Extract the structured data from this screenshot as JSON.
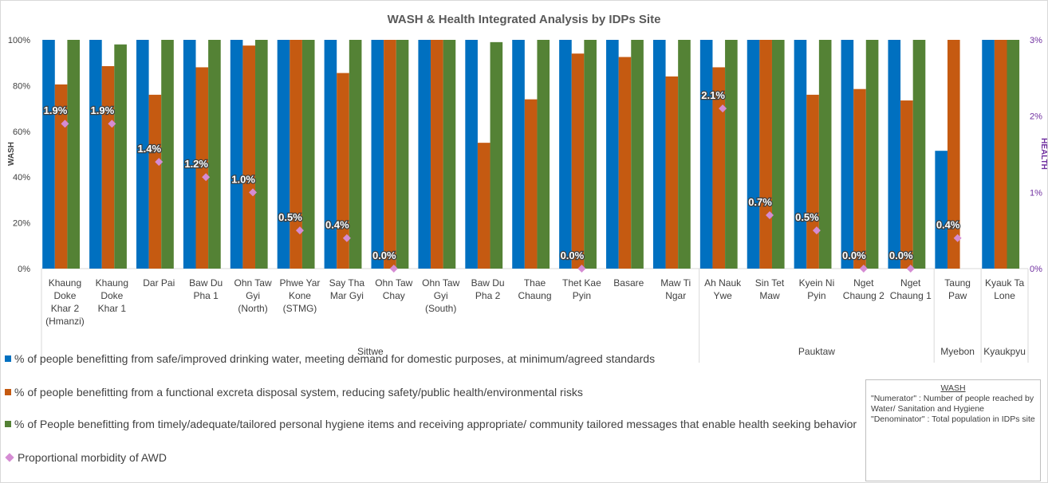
{
  "chart_data": {
    "type": "bar",
    "title": "WASH & Health Integrated Analysis by IDPs Site",
    "y_label": "WASH",
    "y2_label": "HEALTH",
    "groups": [
      {
        "label": "Sittwe",
        "categories": [
          "Khaung\nDoke\nKhar 2\n(Hmanzi)",
          "Khaung\nDoke\nKhar 1",
          "Dar Pai",
          "Baw Du\nPha 1",
          "Ohn Taw\nGyi\n(North)",
          "Phwe Yar\nKone\n(STMG)",
          "Say Tha\nMar Gyi",
          "Ohn Taw\nChay",
          "Ohn Taw\nGyi\n(South)",
          "Baw Du\nPha 2",
          "Thae\nChaung",
          "Thet Kae\nPyin",
          "Basare",
          "Maw Ti\nNgar"
        ]
      },
      {
        "label": "Pauktaw",
        "categories": [
          "Ah Nauk\nYwe",
          "Sin Tet\nMaw",
          "Kyein Ni\nPyin",
          "Nget\nChaung 2",
          "Nget\nChaung 1"
        ]
      },
      {
        "label": "Myebon",
        "categories": [
          "Taung\nPaw"
        ]
      },
      {
        "label": "Kyaukpyu",
        "categories": [
          "Kyauk Ta\nLone"
        ]
      }
    ],
    "series": [
      {
        "name": "% of people benefitting from safe/improved drinking water, meeting demand for domestic purposes, at minimum/agreed standards",
        "color": "#0070c0",
        "values": [
          100,
          100,
          100,
          100,
          100,
          100,
          100,
          100,
          100,
          100,
          100,
          100,
          100,
          100,
          100,
          100,
          100,
          100,
          100,
          51.5,
          100
        ]
      },
      {
        "name": "% of people benefitting from a functional excreta disposal system, reducing safety/public health/environmental risks",
        "color": "#c55a11",
        "values": [
          80.5,
          88.5,
          76,
          88,
          97.5,
          100,
          85.5,
          100,
          100,
          55,
          74,
          94,
          92.5,
          84,
          88,
          100,
          76,
          78.5,
          73.5,
          100,
          100
        ]
      },
      {
        "name": "% of People benefitting from timely/adequate/tailored personal hygiene items and receiving appropriate/ community tailored messages that enable health seeking behavior",
        "color": "#548235",
        "values": [
          100,
          98,
          100,
          100,
          100,
          100,
          100,
          100,
          100,
          99,
          100,
          100,
          100,
          100,
          100,
          100,
          100,
          100,
          100,
          null,
          100
        ]
      },
      {
        "name": "Proportional morbidity of AWD",
        "color": "#d58cd3",
        "axis": "y2",
        "marker": "diamond",
        "values": [
          1.9,
          1.9,
          1.4,
          1.2,
          1.0,
          0.5,
          0.4,
          0.0,
          null,
          null,
          null,
          0.0,
          null,
          null,
          2.1,
          0.7,
          0.5,
          0.0,
          0.0,
          0.4,
          null
        ],
        "value_labels": [
          "1.9%",
          "1.9%",
          "1.4%",
          "1.2%",
          "1.0%",
          "0.5%",
          "0.4%",
          "0.0%",
          null,
          null,
          null,
          "0.0%",
          null,
          null,
          "2.1%",
          "0.7%",
          "0.5%",
          "0.0%",
          "0.0%",
          "0.4%",
          null
        ]
      }
    ],
    "ylim": [
      0,
      100
    ],
    "yticks": [
      {
        "value": 0,
        "label": "0%"
      },
      {
        "value": 20,
        "label": "20%"
      },
      {
        "value": 40,
        "label": "40%"
      },
      {
        "value": 60,
        "label": "60%"
      },
      {
        "value": 80,
        "label": "80%"
      },
      {
        "value": 100,
        "label": "100%"
      }
    ],
    "y2lim": [
      0,
      3
    ],
    "y2ticks": [
      {
        "value": 0,
        "label": "0%"
      },
      {
        "value": 1,
        "label": "1%"
      },
      {
        "value": 2,
        "label": "2%"
      },
      {
        "value": 3,
        "label": "3%"
      }
    ],
    "note": {
      "title": "WASH",
      "lines": [
        "\"Numerator\" : Number of people reached by Water/ Sanitation and Hygiene",
        "\"Denominator\" : Total population in IDPs site"
      ]
    }
  }
}
